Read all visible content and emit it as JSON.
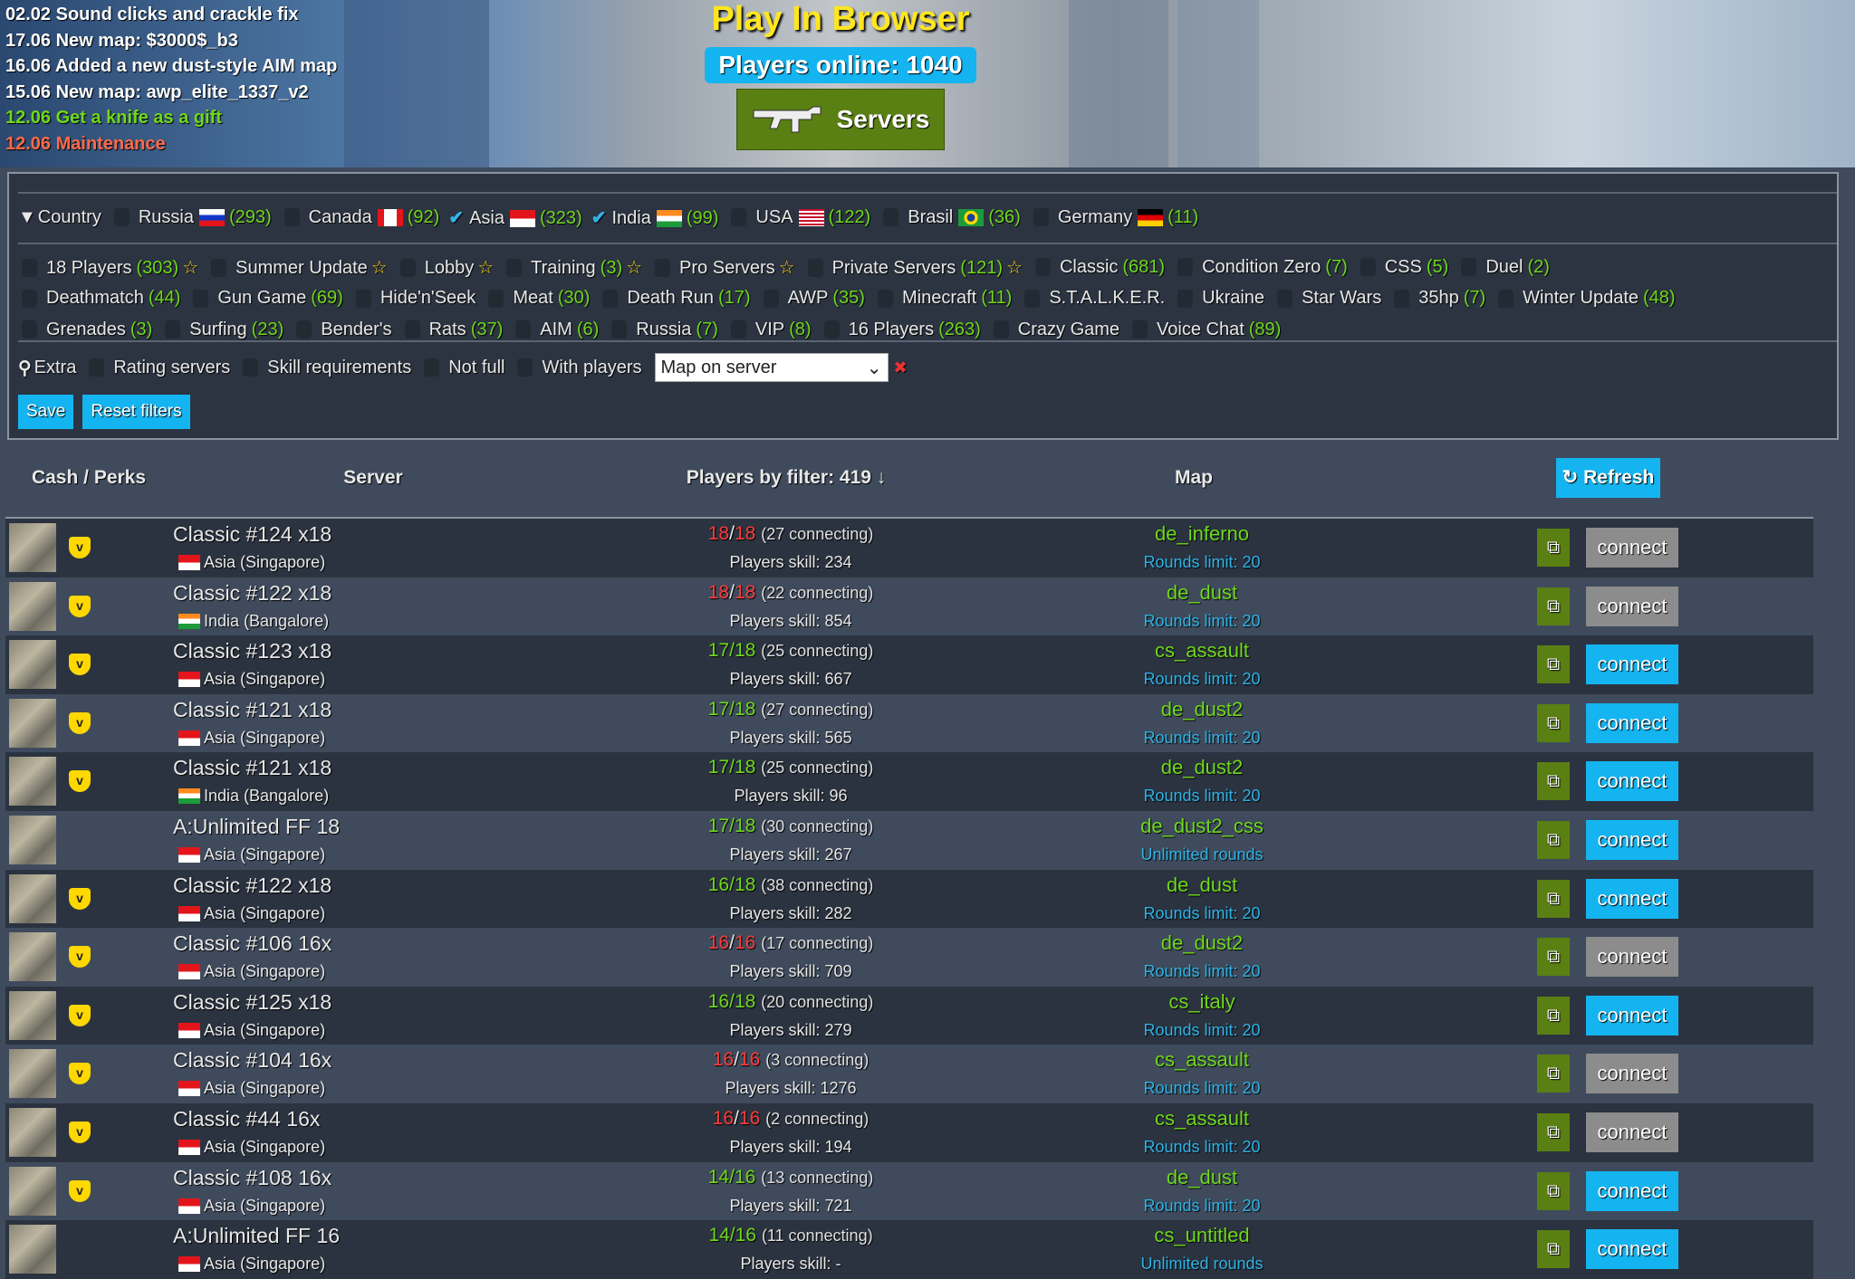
{
  "banner": {
    "title": "Play In Browser",
    "players_online": "Players online: 1040",
    "servers_button": "Servers",
    "news": [
      {
        "text": "02.02 Sound clicks and crackle fix",
        "color": "#ffffff"
      },
      {
        "text": "17.06 New map: $3000$_b3",
        "color": "#ffffff"
      },
      {
        "text": "16.06 Added a new dust-style AIM map",
        "color": "#ffffff"
      },
      {
        "text": "15.06 New map: awp_elite_1337_v2",
        "color": "#ffffff"
      },
      {
        "text": "12.06 Get a knife as a gift",
        "color": "#6fd81b"
      },
      {
        "text": "12.06 Maintenance",
        "color": "#ff6a4a"
      }
    ]
  },
  "filters": {
    "country_label": "Country",
    "countries": [
      {
        "label": "Russia",
        "flag": "f-ru",
        "count": "(293)",
        "checked": false
      },
      {
        "label": "Canada",
        "flag": "f-ca",
        "count": "(92)",
        "checked": false
      },
      {
        "label": "Asia",
        "flag": "f-sg",
        "count": "(323)",
        "checked": true
      },
      {
        "label": "India",
        "flag": "f-in",
        "count": "(99)",
        "checked": true
      },
      {
        "label": "USA",
        "flag": "f-us",
        "count": "(122)",
        "checked": false
      },
      {
        "label": "Brasil",
        "flag": "f-br",
        "count": "(36)",
        "checked": false
      },
      {
        "label": "Germany",
        "flag": "f-de",
        "count": "(11)",
        "checked": false
      }
    ],
    "categories": [
      [
        {
          "label": "18 Players",
          "count": "(303)",
          "star": true
        },
        {
          "label": "Summer Update",
          "count": "",
          "star": true
        },
        {
          "label": "Lobby",
          "count": "",
          "star": true
        },
        {
          "label": "Training",
          "count": "(3)",
          "star": true
        },
        {
          "label": "Pro Servers",
          "count": "",
          "star": true
        },
        {
          "label": "Private Servers",
          "count": "(121)",
          "star": true
        },
        {
          "label": "Classic",
          "count": "(681)",
          "star": false
        },
        {
          "label": "Condition Zero",
          "count": "(7)",
          "star": false
        },
        {
          "label": "CSS",
          "count": "(5)",
          "star": false
        },
        {
          "label": "Duel",
          "count": "(2)",
          "star": false
        }
      ],
      [
        {
          "label": "Deathmatch",
          "count": "(44)",
          "star": false
        },
        {
          "label": "Gun Game",
          "count": "(69)",
          "star": false
        },
        {
          "label": "Hide'n'Seek",
          "count": "",
          "star": false
        },
        {
          "label": "Meat",
          "count": "(30)",
          "star": false
        },
        {
          "label": "Death Run",
          "count": "(17)",
          "star": false
        },
        {
          "label": "AWP",
          "count": "(35)",
          "star": false
        },
        {
          "label": "Minecraft",
          "count": "(11)",
          "star": false
        },
        {
          "label": "S.T.A.L.K.E.R.",
          "count": "",
          "star": false
        },
        {
          "label": "Ukraine",
          "count": "",
          "star": false
        },
        {
          "label": "Star Wars",
          "count": "",
          "star": false
        },
        {
          "label": "35hp",
          "count": "(7)",
          "star": false
        },
        {
          "label": "Winter Update",
          "count": "(48)",
          "star": false
        }
      ],
      [
        {
          "label": "Grenades",
          "count": "(3)",
          "star": false
        },
        {
          "label": "Surfing",
          "count": "(23)",
          "star": false
        },
        {
          "label": "Bender's",
          "count": "",
          "star": false
        },
        {
          "label": "Rats",
          "count": "(37)",
          "star": false
        },
        {
          "label": "AIM",
          "count": "(6)",
          "star": false
        },
        {
          "label": "Russia",
          "count": "(7)",
          "star": false
        },
        {
          "label": "VIP",
          "count": "(8)",
          "star": false
        },
        {
          "label": "16 Players",
          "count": "(263)",
          "star": false
        },
        {
          "label": "Crazy Game",
          "count": "",
          "star": false
        },
        {
          "label": "Voice Chat",
          "count": "(89)",
          "star": false
        }
      ]
    ],
    "extra_label": "Extra",
    "extra": [
      "Rating servers",
      "Skill requirements",
      "Not full",
      "With players"
    ],
    "map_select": "Map on server",
    "save": "Save",
    "reset": "Reset filters"
  },
  "table": {
    "headers": {
      "cash": "Cash / Perks",
      "server": "Server",
      "players": "Players by filter: 419 ↓",
      "map": "Map",
      "refresh": "Refresh"
    },
    "connect_label": "connect",
    "rows": [
      {
        "name": "Classic #124 x18",
        "loc": "Asia (Singapore)",
        "flag": "f-sg",
        "cur": "18",
        "max": "18",
        "conn": "(27 connecting)",
        "skill": "Players skill: 234",
        "map": "de_inferno",
        "rounds": "Rounds limit: 20",
        "perk": true,
        "joinable": false
      },
      {
        "name": "Classic #122 x18",
        "loc": "India (Bangalore)",
        "flag": "f-in",
        "cur": "18",
        "max": "18",
        "conn": "(22 connecting)",
        "skill": "Players skill: 854",
        "map": "de_dust",
        "rounds": "Rounds limit: 20",
        "perk": true,
        "joinable": false
      },
      {
        "name": "Classic #123 x18",
        "loc": "Asia (Singapore)",
        "flag": "f-sg",
        "cur": "17",
        "max": "18",
        "conn": "(25 connecting)",
        "skill": "Players skill: 667",
        "map": "cs_assault",
        "rounds": "Rounds limit: 20",
        "perk": true,
        "joinable": true
      },
      {
        "name": "Classic #121 x18",
        "loc": "Asia (Singapore)",
        "flag": "f-sg",
        "cur": "17",
        "max": "18",
        "conn": "(27 connecting)",
        "skill": "Players skill: 565",
        "map": "de_dust2",
        "rounds": "Rounds limit: 20",
        "perk": true,
        "joinable": true
      },
      {
        "name": "Classic #121 x18",
        "loc": "India (Bangalore)",
        "flag": "f-in",
        "cur": "17",
        "max": "18",
        "conn": "(25 connecting)",
        "skill": "Players skill: 96",
        "map": "de_dust2",
        "rounds": "Rounds limit: 20",
        "perk": true,
        "joinable": true
      },
      {
        "name": "A:Unlimited FF 18",
        "loc": "Asia (Singapore)",
        "flag": "f-sg",
        "cur": "17",
        "max": "18",
        "conn": "(30 connecting)",
        "skill": "Players skill: 267",
        "map": "de_dust2_css",
        "rounds": "Unlimited rounds",
        "perk": false,
        "joinable": true
      },
      {
        "name": "Classic #122 x18",
        "loc": "Asia (Singapore)",
        "flag": "f-sg",
        "cur": "16",
        "max": "18",
        "conn": "(38 connecting)",
        "skill": "Players skill: 282",
        "map": "de_dust",
        "rounds": "Rounds limit: 20",
        "perk": true,
        "joinable": true
      },
      {
        "name": "Classic #106 16x",
        "loc": "Asia (Singapore)",
        "flag": "f-sg",
        "cur": "16",
        "max": "16",
        "conn": "(17 connecting)",
        "skill": "Players skill: 709",
        "map": "de_dust2",
        "rounds": "Rounds limit: 20",
        "perk": true,
        "joinable": false
      },
      {
        "name": "Classic #125 x18",
        "loc": "Asia (Singapore)",
        "flag": "f-sg",
        "cur": "16",
        "max": "18",
        "conn": "(20 connecting)",
        "skill": "Players skill: 279",
        "map": "cs_italy",
        "rounds": "Rounds limit: 20",
        "perk": true,
        "joinable": true
      },
      {
        "name": "Classic #104 16x",
        "loc": "Asia (Singapore)",
        "flag": "f-sg",
        "cur": "16",
        "max": "16",
        "conn": "(3 connecting)",
        "skill": "Players skill: 1276",
        "map": "cs_assault",
        "rounds": "Rounds limit: 20",
        "perk": true,
        "joinable": false
      },
      {
        "name": "Classic #44 16x",
        "loc": "Asia (Singapore)",
        "flag": "f-sg",
        "cur": "16",
        "max": "16",
        "conn": "(2 connecting)",
        "skill": "Players skill: 194",
        "map": "cs_assault",
        "rounds": "Rounds limit: 20",
        "perk": true,
        "joinable": false
      },
      {
        "name": "Classic #108 16x",
        "loc": "Asia (Singapore)",
        "flag": "f-sg",
        "cur": "14",
        "max": "16",
        "conn": "(13 connecting)",
        "skill": "Players skill: 721",
        "map": "de_dust",
        "rounds": "Rounds limit: 20",
        "perk": true,
        "joinable": true
      },
      {
        "name": "A:Unlimited FF 16",
        "loc": "Asia (Singapore)",
        "flag": "f-sg",
        "cur": "14",
        "max": "16",
        "conn": "(11 connecting)",
        "skill": "Players skill: -",
        "map": "cs_untitled",
        "rounds": "Unlimited rounds",
        "perk": false,
        "joinable": true
      }
    ]
  }
}
